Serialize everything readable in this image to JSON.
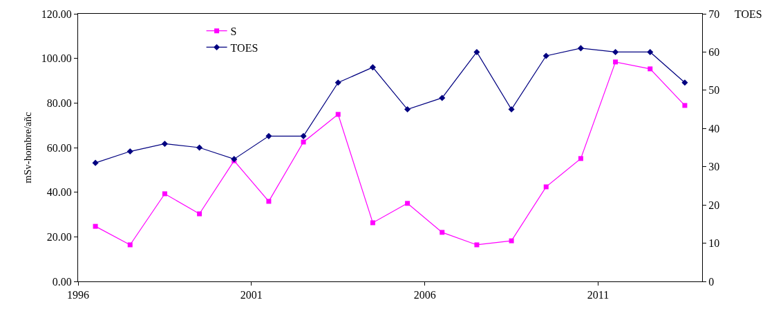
{
  "chart_data": {
    "type": "line",
    "ylabel": "mSv-hombre/añc",
    "y2label": "TOES",
    "x": [
      1996.5,
      1997.5,
      1998.5,
      1999.5,
      2000.5,
      2001.5,
      2002.5,
      2003.5,
      2004.5,
      2005.5,
      2006.5,
      2007.5,
      2008.5,
      2009.5,
      2010.5,
      2011.5,
      2012.5,
      2013.5
    ],
    "xlim": [
      1996,
      2014
    ],
    "xticks": [
      1996,
      2001,
      2006,
      2011
    ],
    "ylim": [
      0,
      120
    ],
    "yticks": [
      {
        "value": 0,
        "label": "0.00"
      },
      {
        "value": 20,
        "label": "20.00"
      },
      {
        "value": 40,
        "label": "40.00"
      },
      {
        "value": 60,
        "label": "60.00"
      },
      {
        "value": 80,
        "label": "80.00"
      },
      {
        "value": 100,
        "label": "100.00"
      },
      {
        "value": 120,
        "label": "120.00"
      }
    ],
    "y2lim": [
      0,
      70
    ],
    "y2ticks": [
      0,
      10,
      20,
      30,
      40,
      50,
      60,
      70
    ],
    "series": [
      {
        "name": "S",
        "color": "#ff00ff",
        "marker": "square",
        "values": [
          24.7,
          16.4,
          39.3,
          30.3,
          54.1,
          35.9,
          62.5,
          74.9,
          26.3,
          35.0,
          22.0,
          16.4,
          18.2,
          42.4,
          55.1,
          98.4,
          95.3,
          78.9
        ]
      },
      {
        "name": "TOES",
        "color": "#000080",
        "marker": "diamond",
        "axis": "y2",
        "values": [
          31,
          34,
          36,
          35,
          32,
          38,
          38,
          52,
          56,
          45,
          48,
          60,
          45,
          59,
          61,
          60,
          60,
          52
        ]
      }
    ],
    "grid": false,
    "legend": "top left",
    "line_style": "solid"
  }
}
